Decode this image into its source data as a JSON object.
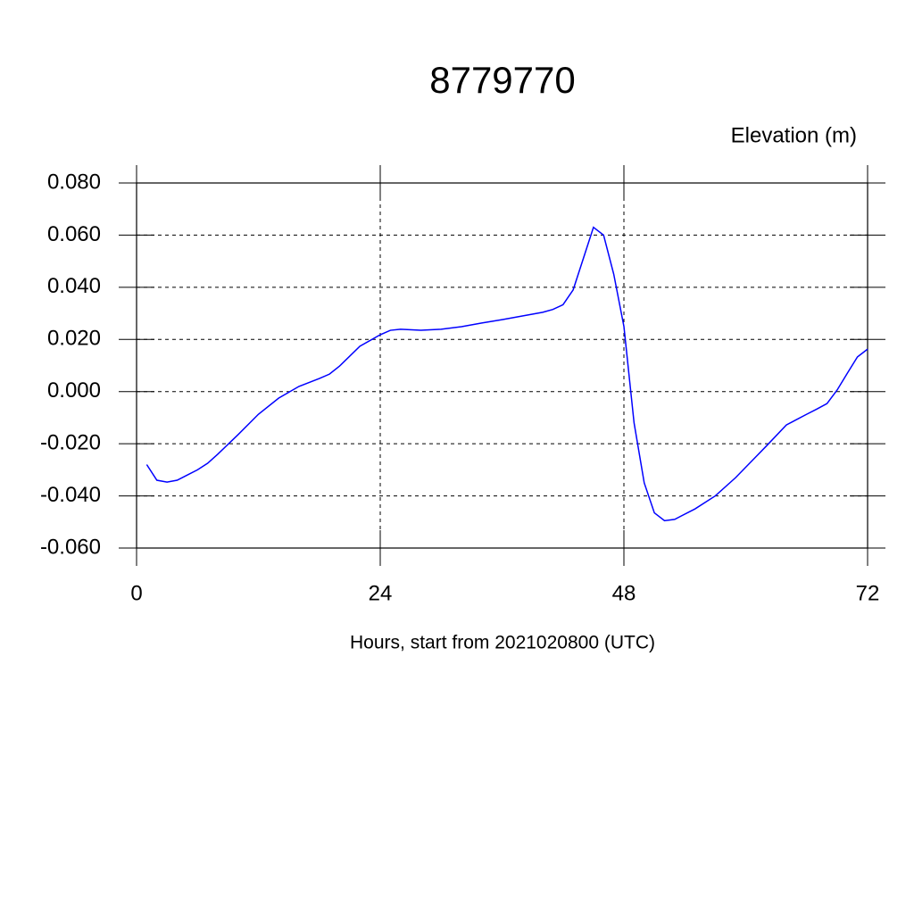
{
  "chart_data": {
    "type": "line",
    "title": "8779770",
    "subtitle": "Elevation (m)",
    "x_label": "Hours, start from 2021020800 (UTC)",
    "x": [
      1,
      2,
      3,
      4,
      5,
      6,
      7,
      8,
      10,
      12,
      14,
      16,
      18,
      19,
      20,
      22,
      24,
      25,
      26,
      28,
      30,
      32,
      34,
      36,
      38,
      40,
      41,
      42,
      43,
      44,
      45,
      46,
      47,
      48,
      49,
      50,
      51,
      52,
      53,
      55,
      57,
      59,
      61,
      62,
      64,
      66,
      67,
      68,
      69,
      70,
      71,
      72
    ],
    "series": [
      {
        "name": "Elevation",
        "color": "#0000ff",
        "values": [
          -0.028,
          -0.034,
          -0.0347,
          -0.034,
          -0.032,
          -0.03,
          -0.0275,
          -0.024,
          -0.0165,
          -0.0087,
          -0.0025,
          0.002,
          0.005,
          0.0067,
          0.0098,
          0.0174,
          0.0218,
          0.0235,
          0.0239,
          0.0235,
          0.0239,
          0.0249,
          0.0263,
          0.0276,
          0.029,
          0.0304,
          0.0315,
          0.0333,
          0.039,
          0.051,
          0.063,
          0.06,
          0.045,
          0.025,
          -0.012,
          -0.035,
          -0.0465,
          -0.0495,
          -0.049,
          -0.045,
          -0.04,
          -0.033,
          -0.025,
          -0.021,
          -0.0128,
          -0.0087,
          -0.0067,
          -0.0046,
          0.0006,
          0.007,
          0.0133,
          0.0163
        ]
      }
    ],
    "xlim": [
      0,
      72
    ],
    "xticks": [
      0,
      24,
      48,
      72
    ],
    "ylim": [
      -0.06,
      0.08
    ],
    "yticks": [
      {
        "value": -0.06,
        "label": "-0.060"
      },
      {
        "value": -0.04,
        "label": "-0.040"
      },
      {
        "value": -0.02,
        "label": "-0.020"
      },
      {
        "value": 0,
        "label": "0.000"
      },
      {
        "value": 0.02,
        "label": "0.020"
      },
      {
        "value": 0.04,
        "label": "0.040"
      },
      {
        "value": 0.06,
        "label": "0.060"
      },
      {
        "value": 0.08,
        "label": "0.080"
      }
    ],
    "grid": true
  }
}
